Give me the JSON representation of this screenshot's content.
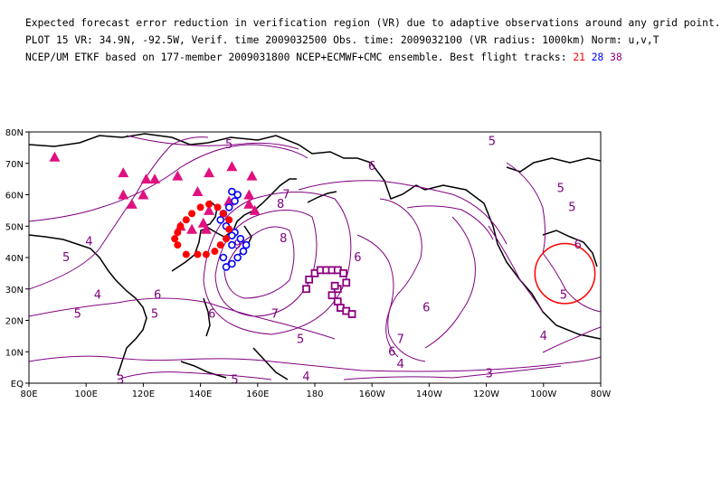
{
  "header": {
    "line1": "Expected forecast error reduction in verification region (VR) due to adaptive observations around any grid point.",
    "line2": "PLOT 15 VR: 34.9N, -92.5W, Verif. time 2009032500 Obs. time: 2009032100 (VR radius: 1000km) Norm: u,v,T",
    "line3_prefix": "NCEP/UM ETKF based on 177-member 2009031800 NCEP+ECMWF+CMC ensemble. Best flight tracks:",
    "track_ids": [
      {
        "id": "21",
        "color": "#ff0000"
      },
      {
        "id": "28",
        "color": "#0000ff"
      },
      {
        "id": "38",
        "color": "#8b0080"
      }
    ]
  },
  "map": {
    "lon_range": [
      80,
      280
    ],
    "lat_range": [
      0,
      80
    ],
    "x_ticks": [
      "80E",
      "100E",
      "120E",
      "140E",
      "160E",
      "180",
      "160W",
      "140W",
      "120W",
      "100W",
      "80W"
    ],
    "y_ticks": [
      "EQ",
      "10N",
      "20N",
      "30N",
      "40N",
      "50N",
      "60N",
      "70N",
      "80N"
    ],
    "contour_color": "#800080",
    "contour_labels": [
      {
        "text": "5",
        "lon": 150,
        "lat": 76
      },
      {
        "text": "5",
        "lon": 242,
        "lat": 77
      },
      {
        "text": "6",
        "lon": 200,
        "lat": 69
      },
      {
        "text": "4",
        "lon": 101,
        "lat": 45
      },
      {
        "text": "5",
        "lon": 93,
        "lat": 40
      },
      {
        "text": "5",
        "lon": 266,
        "lat": 62
      },
      {
        "text": "5",
        "lon": 270,
        "lat": 56
      },
      {
        "text": "6",
        "lon": 272,
        "lat": 44
      },
      {
        "text": "4",
        "lon": 104,
        "lat": 28
      },
      {
        "text": "5",
        "lon": 97,
        "lat": 22
      },
      {
        "text": "6",
        "lon": 125,
        "lat": 28
      },
      {
        "text": "5",
        "lon": 124,
        "lat": 22
      },
      {
        "text": "6",
        "lon": 144,
        "lat": 22
      },
      {
        "text": "7",
        "lon": 170,
        "lat": 60
      },
      {
        "text": "8",
        "lon": 168,
        "lat": 57
      },
      {
        "text": "8",
        "lon": 169,
        "lat": 46
      },
      {
        "text": "9",
        "lon": 153,
        "lat": 44
      },
      {
        "text": "7",
        "lon": 166,
        "lat": 22
      },
      {
        "text": "6",
        "lon": 195,
        "lat": 40
      },
      {
        "text": "7",
        "lon": 210,
        "lat": 14
      },
      {
        "text": "6",
        "lon": 207,
        "lat": 10
      },
      {
        "text": "5",
        "lon": 175,
        "lat": 14
      },
      {
        "text": "4",
        "lon": 177,
        "lat": 2
      },
      {
        "text": "4",
        "lon": 210,
        "lat": 6
      },
      {
        "text": "3",
        "lon": 241,
        "lat": 3
      },
      {
        "text": "5",
        "lon": 152,
        "lat": 1
      },
      {
        "text": "4",
        "lon": 260,
        "lat": 15
      },
      {
        "text": "5",
        "lon": 267,
        "lat": 28
      },
      {
        "text": "3",
        "lon": 112,
        "lat": 1
      },
      {
        "text": "6",
        "lon": 219,
        "lat": 24
      }
    ],
    "verification_region": {
      "lon": 267.5,
      "lat": 34.9,
      "radius_deg": 10.5,
      "color": "#ff0000"
    },
    "grid_points": {
      "color": "#e0107f",
      "coords": [
        [
          89,
          72
        ],
        [
          113,
          67
        ],
        [
          121,
          65
        ],
        [
          113,
          60
        ],
        [
          116,
          57
        ],
        [
          120,
          60
        ],
        [
          124,
          65
        ],
        [
          132,
          66
        ],
        [
          143,
          67
        ],
        [
          139,
          61
        ],
        [
          151,
          69
        ],
        [
          158,
          66
        ],
        [
          150,
          58
        ],
        [
          157,
          60
        ],
        [
          133,
          50
        ],
        [
          137,
          49
        ],
        [
          141,
          51
        ],
        [
          143,
          55
        ],
        [
          142,
          49
        ],
        [
          157,
          57
        ],
        [
          159,
          55
        ]
      ]
    },
    "flight_tracks": [
      {
        "id": "38",
        "symbol": "square",
        "color": "#8b0080",
        "points": [
          [
            177,
            30
          ],
          [
            178,
            33
          ],
          [
            180,
            35
          ],
          [
            182,
            36
          ],
          [
            184,
            36
          ],
          [
            186,
            36
          ],
          [
            188,
            36
          ],
          [
            190,
            35
          ],
          [
            191,
            32
          ],
          [
            188,
            30
          ],
          [
            186,
            28
          ],
          [
            188,
            26
          ],
          [
            189,
            24
          ],
          [
            191,
            23
          ],
          [
            193,
            22
          ],
          [
            187,
            31
          ]
        ]
      },
      {
        "id": "28",
        "symbol": "circle",
        "color": "#0000ff",
        "points": [
          [
            151,
            61
          ],
          [
            153,
            60
          ],
          [
            152,
            58
          ],
          [
            150,
            56
          ],
          [
            148,
            54
          ],
          [
            147,
            52
          ],
          [
            149,
            50
          ],
          [
            152,
            48
          ],
          [
            154,
            46
          ],
          [
            156,
            44
          ],
          [
            155,
            42
          ],
          [
            153,
            40
          ],
          [
            151,
            38
          ],
          [
            149,
            37
          ],
          [
            148,
            40
          ],
          [
            151,
            44
          ],
          [
            151,
            47
          ]
        ]
      },
      {
        "id": "21",
        "symbol": "dot",
        "color": "#ff0000",
        "points": [
          [
            143,
            57
          ],
          [
            140,
            56
          ],
          [
            137,
            54
          ],
          [
            135,
            52
          ],
          [
            133,
            50
          ],
          [
            132,
            48
          ],
          [
            131,
            46
          ],
          [
            132,
            44
          ],
          [
            135,
            41
          ],
          [
            139,
            41
          ],
          [
            142,
            41
          ],
          [
            145,
            42
          ],
          [
            147,
            44
          ],
          [
            149,
            46
          ],
          [
            150,
            49
          ],
          [
            150,
            52
          ],
          [
            148,
            54
          ],
          [
            146,
            56
          ]
        ]
      }
    ]
  }
}
